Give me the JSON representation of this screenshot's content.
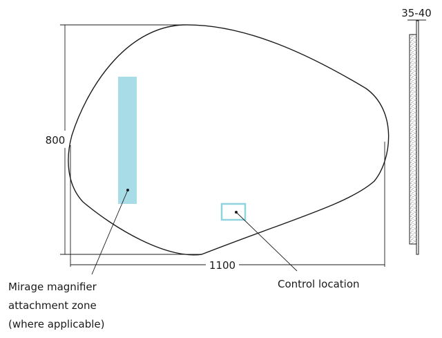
{
  "dimensions": {
    "height": "800",
    "width": "1100",
    "depth": "35-40"
  },
  "callouts": {
    "magnifier_line1": "Mirage magnifier",
    "magnifier_line2": "attachment zone",
    "magnifier_line3": "(where applicable)",
    "control": "Control location"
  },
  "colors": {
    "outline": "#1a1a1a",
    "magnifier_zone": "#a8dde8",
    "control_box": "#8fd3df"
  }
}
